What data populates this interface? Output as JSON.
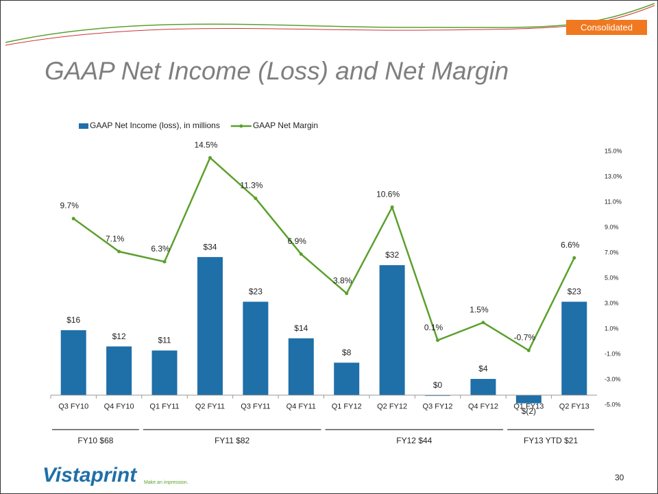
{
  "badge": "Consolidated",
  "page_number": "30",
  "logo": {
    "name": "Vistaprint",
    "tagline": "Make an impression."
  },
  "chart_data": {
    "type": "bar",
    "title": "GAAP Net Income (Loss) and Net Margin",
    "categories": [
      "Q3 FY10",
      "Q4 FY10",
      "Q1 FY11",
      "Q2 FY11",
      "Q3 FY11",
      "Q4 FY11",
      "Q1 FY12",
      "Q2 FY12",
      "Q3 FY12",
      "Q4 FY12",
      "Q1 FY13",
      "Q2 FY13"
    ],
    "series": [
      {
        "name": "GAAP Net Income (loss), in millions",
        "color": "#1f6fa8",
        "type": "bar",
        "values": [
          16,
          12,
          11,
          34,
          23,
          14,
          8,
          32,
          0,
          4,
          -2,
          23
        ],
        "value_labels": [
          "$16",
          "$12",
          "$11",
          "$34",
          "$23",
          "$14",
          "$8",
          "$32",
          "$0",
          "$4",
          "$(2)",
          "$23"
        ]
      },
      {
        "name": "GAAP Net Margin",
        "color": "#5aa02c",
        "type": "line",
        "axis": "y2",
        "values": [
          9.7,
          7.1,
          6.3,
          14.5,
          11.3,
          6.9,
          3.8,
          10.6,
          0.1,
          1.5,
          -0.7,
          6.6
        ],
        "value_labels": [
          "9.7%",
          "7.1%",
          "6.3%",
          "14.5%",
          "11.3%",
          "6.9%",
          "3.8%",
          "10.6%",
          "0.1%",
          "1.5%",
          "-0.7%",
          "6.6%"
        ]
      }
    ],
    "ylim": [
      -2.4,
      60
    ],
    "y2lim": [
      -5,
      15
    ],
    "y2ticks": [
      {
        "value": -5,
        "label": "-5.0%"
      },
      {
        "value": -3,
        "label": "-3.0%"
      },
      {
        "value": -1,
        "label": "-1.0%"
      },
      {
        "value": 1,
        "label": "1.0%"
      },
      {
        "value": 3,
        "label": "3.0%"
      },
      {
        "value": 5,
        "label": "5.0%"
      },
      {
        "value": 7,
        "label": "7.0%"
      },
      {
        "value": 9,
        "label": "9.0%"
      },
      {
        "value": 11,
        "label": "11.0%"
      },
      {
        "value": 13,
        "label": "13.0%"
      },
      {
        "value": 15,
        "label": "15.0%"
      }
    ],
    "groups": [
      {
        "label": "FY10  $68",
        "start": 0,
        "end": 1
      },
      {
        "label": "FY11  $82",
        "start": 2,
        "end": 5
      },
      {
        "label": "FY12  $44",
        "start": 6,
        "end": 9
      },
      {
        "label": "FY13 YTD  $21",
        "start": 10,
        "end": 11
      }
    ],
    "legend": "top"
  }
}
